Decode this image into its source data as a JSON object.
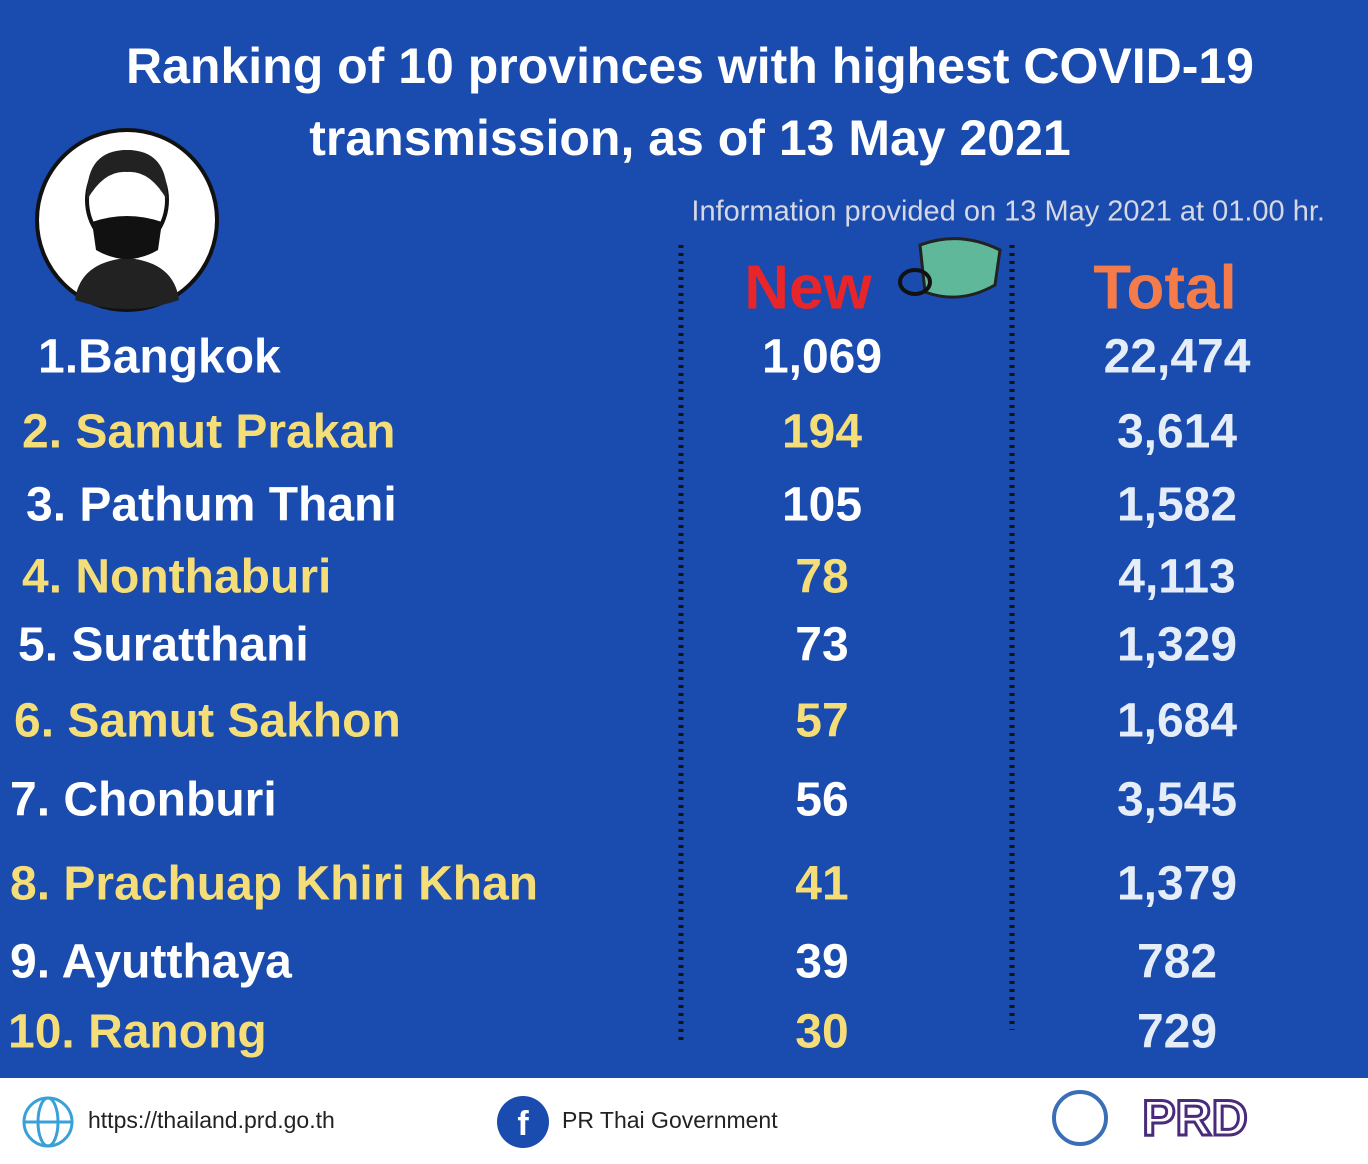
{
  "header": {
    "title_line1": "Ranking of 10 provinces with highest COVID-19",
    "title_line2": "transmission, as of 13 May 2021",
    "subtitle": "Information provided on 13 May 2021 at 01.00 hr."
  },
  "table": {
    "columns": [
      "New",
      "Total"
    ],
    "rows": [
      [
        "1.Bangkok",
        "1,069",
        "22,474"
      ],
      [
        "2. Samut Prakan",
        "194",
        "3,614"
      ],
      [
        "3. Pathum Thani",
        "105",
        "1,582"
      ],
      [
        "4. Nonthaburi",
        "78",
        "4,113"
      ],
      [
        "5. Suratthani",
        "73",
        "1,329"
      ],
      [
        "6. Samut Sakhon",
        "57",
        "1,684"
      ],
      [
        "7. Chonburi",
        "56",
        "3,545"
      ],
      [
        "8. Prachuap Khiri Khan",
        "41",
        "1,379"
      ],
      [
        "9. Ayutthaya",
        "39",
        "782"
      ],
      [
        "10. Ranong",
        "30",
        "729"
      ]
    ]
  },
  "footer": {
    "website": "https://thailand.prd.go.th",
    "facebook": "PR Thai Government",
    "logo": "PRD"
  }
}
